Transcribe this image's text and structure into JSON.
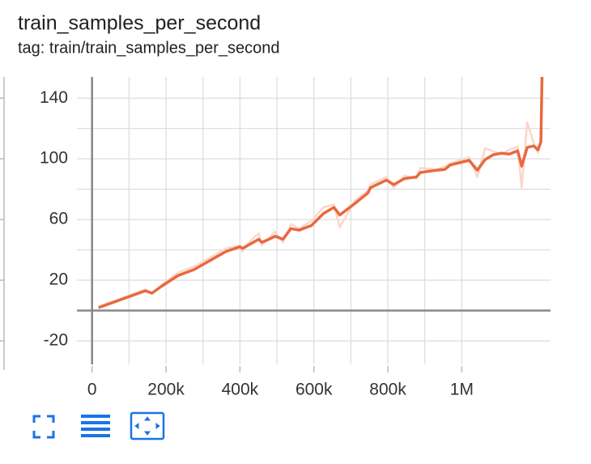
{
  "chart_data": {
    "type": "line",
    "title": "train_samples_per_second",
    "subtitle": "tag: train/train_samples_per_second",
    "x": [
      17500,
      144000,
      162000,
      188000,
      232000,
      276000,
      319000,
      363000,
      400000,
      407000,
      429000,
      451000,
      459000,
      479000,
      495000,
      516000,
      538000,
      560000,
      593000,
      626000,
      654000,
      670000,
      713000,
      746000,
      753000,
      796000,
      816000,
      845000,
      877000,
      888000,
      932000,
      954000,
      969000,
      1020000,
      1042000,
      1063000,
      1085000,
      1107000,
      1129000,
      1151000,
      1162000,
      1177000,
      1195000,
      1206000,
      1214000,
      1217000
    ],
    "series": [
      {
        "color": "#fcd6ca",
        "values": [
          2.5,
          14,
          11,
          17,
          25,
          29,
          35,
          41,
          43,
          39,
          46,
          51,
          43,
          48,
          52,
          45,
          57,
          54,
          59,
          68,
          70,
          55,
          73,
          79,
          83,
          88,
          81,
          89,
          87,
          94,
          93,
          95,
          97,
          101,
          88,
          107,
          105,
          103,
          106,
          108,
          81,
          124,
          110,
          104,
          113,
          154
        ]
      },
      {
        "color": "#e8693f",
        "values": [
          1.9,
          13,
          11.5,
          16,
          23,
          27,
          33,
          39,
          42,
          41,
          44,
          47,
          45,
          47,
          49,
          47,
          54,
          53,
          56,
          64,
          68,
          63,
          71,
          77.5,
          81,
          86,
          83,
          87,
          88,
          91,
          92.5,
          93,
          96,
          99,
          92.5,
          99.5,
          102.7,
          103.7,
          103.2,
          105.3,
          95.2,
          107.5,
          108.5,
          105.9,
          111.2,
          154
        ]
      }
    ],
    "xlim": [
      -41000,
      1240000
    ],
    "ylim": [
      -35.5,
      154
    ],
    "xticks": [
      0,
      {
        "value": 200000,
        "label": "200k"
      },
      {
        "value": 400000,
        "label": "400k"
      },
      {
        "value": 600000,
        "label": "600k"
      },
      {
        "value": 800000,
        "label": "800k"
      },
      {
        "value": 1000000,
        "label": "1M"
      }
    ],
    "yticks": [
      -20,
      20,
      60,
      100,
      140
    ],
    "grid": true
  }
}
